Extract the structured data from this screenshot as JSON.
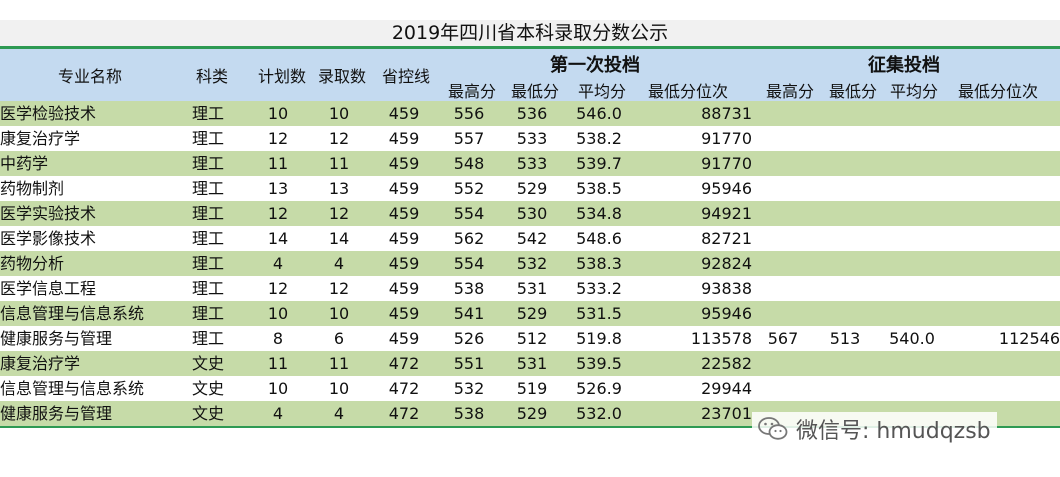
{
  "title": "2019年四川省本科录取分数公示",
  "headers": {
    "major": "专业名称",
    "category": "科类",
    "plan": "计划数",
    "admitted": "录取数",
    "control_line": "省控线",
    "first_round_group": "第一次投档",
    "supplementary_group": "征集投档",
    "max": "最高分",
    "min": "最低分",
    "avg": "平均分",
    "min_rank": "最低分位次"
  },
  "rows": [
    [
      "医学检验技术",
      "理工",
      "10",
      "10",
      "459",
      "556",
      "536",
      "546.0",
      "88731",
      "",
      "",
      "",
      ""
    ],
    [
      "康复治疗学",
      "理工",
      "12",
      "12",
      "459",
      "557",
      "533",
      "538.2",
      "91770",
      "",
      "",
      "",
      ""
    ],
    [
      "中药学",
      "理工",
      "11",
      "11",
      "459",
      "548",
      "533",
      "539.7",
      "91770",
      "",
      "",
      "",
      ""
    ],
    [
      "药物制剂",
      "理工",
      "13",
      "13",
      "459",
      "552",
      "529",
      "538.5",
      "95946",
      "",
      "",
      "",
      ""
    ],
    [
      "医学实验技术",
      "理工",
      "12",
      "12",
      "459",
      "554",
      "530",
      "534.8",
      "94921",
      "",
      "",
      "",
      ""
    ],
    [
      "医学影像技术",
      "理工",
      "14",
      "14",
      "459",
      "562",
      "542",
      "548.6",
      "82721",
      "",
      "",
      "",
      ""
    ],
    [
      "药物分析",
      "理工",
      "4",
      "4",
      "459",
      "554",
      "532",
      "538.3",
      "92824",
      "",
      "",
      "",
      ""
    ],
    [
      "医学信息工程",
      "理工",
      "12",
      "12",
      "459",
      "538",
      "531",
      "533.2",
      "93838",
      "",
      "",
      "",
      ""
    ],
    [
      "信息管理与信息系统",
      "理工",
      "10",
      "10",
      "459",
      "541",
      "529",
      "531.5",
      "95946",
      "",
      "",
      "",
      ""
    ],
    [
      "健康服务与管理",
      "理工",
      "8",
      "6",
      "459",
      "526",
      "512",
      "519.8",
      "113578",
      "567",
      "513",
      "540.0",
      "112546"
    ],
    [
      "康复治疗学",
      "文史",
      "11",
      "11",
      "472",
      "551",
      "531",
      "539.5",
      "22582",
      "",
      "",
      "",
      ""
    ],
    [
      "信息管理与信息系统",
      "文史",
      "10",
      "10",
      "472",
      "532",
      "519",
      "526.9",
      "29944",
      "",
      "",
      "",
      ""
    ],
    [
      "健康服务与管理",
      "文史",
      "4",
      "4",
      "472",
      "538",
      "529",
      "532.0",
      "23701",
      "",
      "",
      "",
      ""
    ]
  ],
  "watermark": {
    "text": "微信号: hmudqzsb",
    "icon": "wechat-icon"
  },
  "colors": {
    "header_bg": "#c4daf0",
    "odd_row_bg": "#c6dba8",
    "rule": "#2e9a53"
  }
}
